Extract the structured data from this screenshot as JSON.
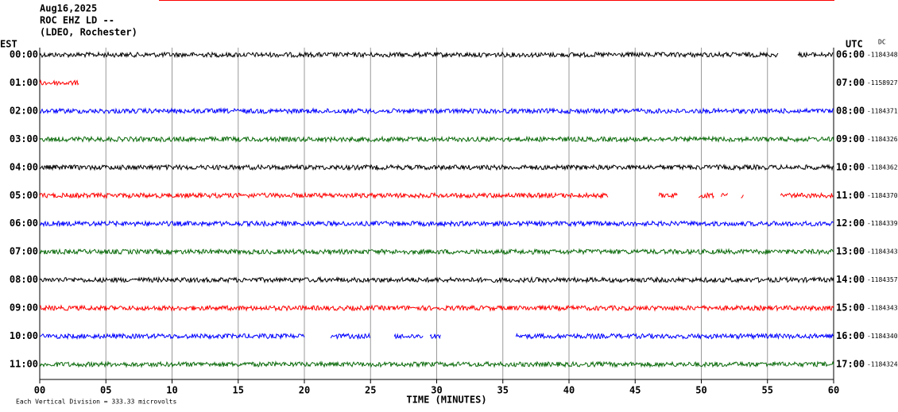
{
  "header": {
    "date": "Aug16,2025",
    "station": "ROC EHZ LD --",
    "network": "(LDEO, Rochester)"
  },
  "chart_data": {
    "type": "helicorder",
    "x_label": "TIME (MINUTES)",
    "left_axis_label": "EST",
    "right_axis_label": "UTC",
    "dc_label": "DC",
    "footer": "Each Vertical Division =  333.33 microvolts",
    "xlim": [
      0,
      60
    ],
    "xticks": [
      {
        "value": 0,
        "label": "00"
      },
      {
        "value": 5,
        "label": "05"
      },
      10,
      15,
      20,
      25,
      30,
      35,
      40,
      45,
      50,
      55,
      60
    ],
    "grid": true,
    "rows": [
      {
        "est": "00:00",
        "utc": "06:00",
        "dc": -1184348,
        "color": "#000000",
        "segments": [
          [
            0,
            55.8
          ],
          [
            57.3,
            60
          ]
        ]
      },
      {
        "est": "01:00",
        "utc": "07:00",
        "dc": -1158927,
        "color": "#ff0000",
        "segments": [
          [
            0,
            3
          ]
        ]
      },
      {
        "est": "02:00",
        "utc": "08:00",
        "dc": -1184371,
        "color": "#0000ff",
        "segments": [
          [
            0,
            60
          ]
        ]
      },
      {
        "est": "03:00",
        "utc": "09:00",
        "dc": -1184326,
        "color": "#0a6a0a",
        "segments": [
          [
            0,
            60
          ]
        ]
      },
      {
        "est": "04:00",
        "utc": "10:00",
        "dc": -1184362,
        "color": "#000000",
        "segments": [
          [
            0,
            60
          ]
        ]
      },
      {
        "est": "05:00",
        "utc": "11:00",
        "dc": -1184370,
        "color": "#ff0000",
        "segments": [
          [
            0,
            43
          ],
          [
            46.8,
            48.2
          ],
          [
            49.8,
            51
          ],
          [
            51.5,
            52
          ],
          [
            53,
            53.2
          ],
          [
            56,
            60
          ]
        ]
      },
      {
        "est": "06:00",
        "utc": "12:00",
        "dc": -1184339,
        "color": "#0000ff",
        "segments": [
          [
            0,
            60
          ]
        ]
      },
      {
        "est": "07:00",
        "utc": "13:00",
        "dc": -1184343,
        "color": "#0a6a0a",
        "segments": [
          [
            0,
            60
          ]
        ]
      },
      {
        "est": "08:00",
        "utc": "14:00",
        "dc": -1184357,
        "color": "#000000",
        "segments": [
          [
            0,
            60
          ]
        ]
      },
      {
        "est": "09:00",
        "utc": "15:00",
        "dc": -1184343,
        "color": "#ff0000",
        "segments": [
          [
            0,
            60
          ]
        ]
      },
      {
        "est": "10:00",
        "utc": "16:00",
        "dc": -1184340,
        "color": "#0000ff",
        "segments": [
          [
            0,
            20
          ],
          [
            22,
            25
          ],
          [
            26.8,
            29
          ],
          [
            29.5,
            30.3
          ],
          [
            36,
            60
          ]
        ]
      },
      {
        "est": "11:00",
        "utc": "17:00",
        "dc": -1184324,
        "color": "#0a6a0a",
        "segments": [
          [
            0,
            60
          ]
        ]
      }
    ]
  }
}
